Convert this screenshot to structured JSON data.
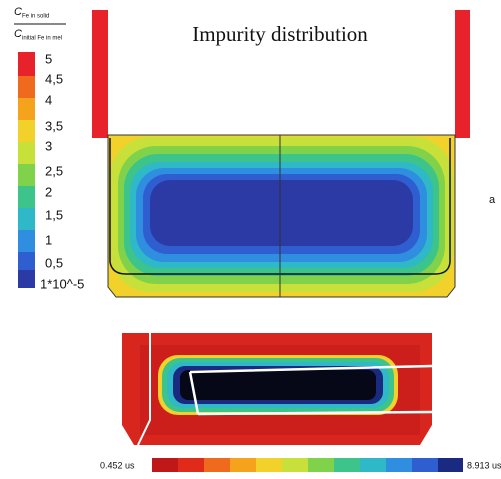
{
  "figure": {
    "title": "Impurity distribution",
    "legend": {
      "numerator": "C",
      "numerator_sub": "Fe in solid",
      "denominator": "C",
      "denominator_sub": "initial Fe in mel",
      "labels": [
        "5",
        "4,5",
        "4",
        "3,5",
        "3",
        "2,5",
        "2",
        "1,5",
        "1",
        "0,5",
        "1*10^-5"
      ]
    },
    "panel_label": "a",
    "bottom_scale": {
      "min_label": "0.452 us",
      "max_label": "8.913 us"
    }
  }
}
